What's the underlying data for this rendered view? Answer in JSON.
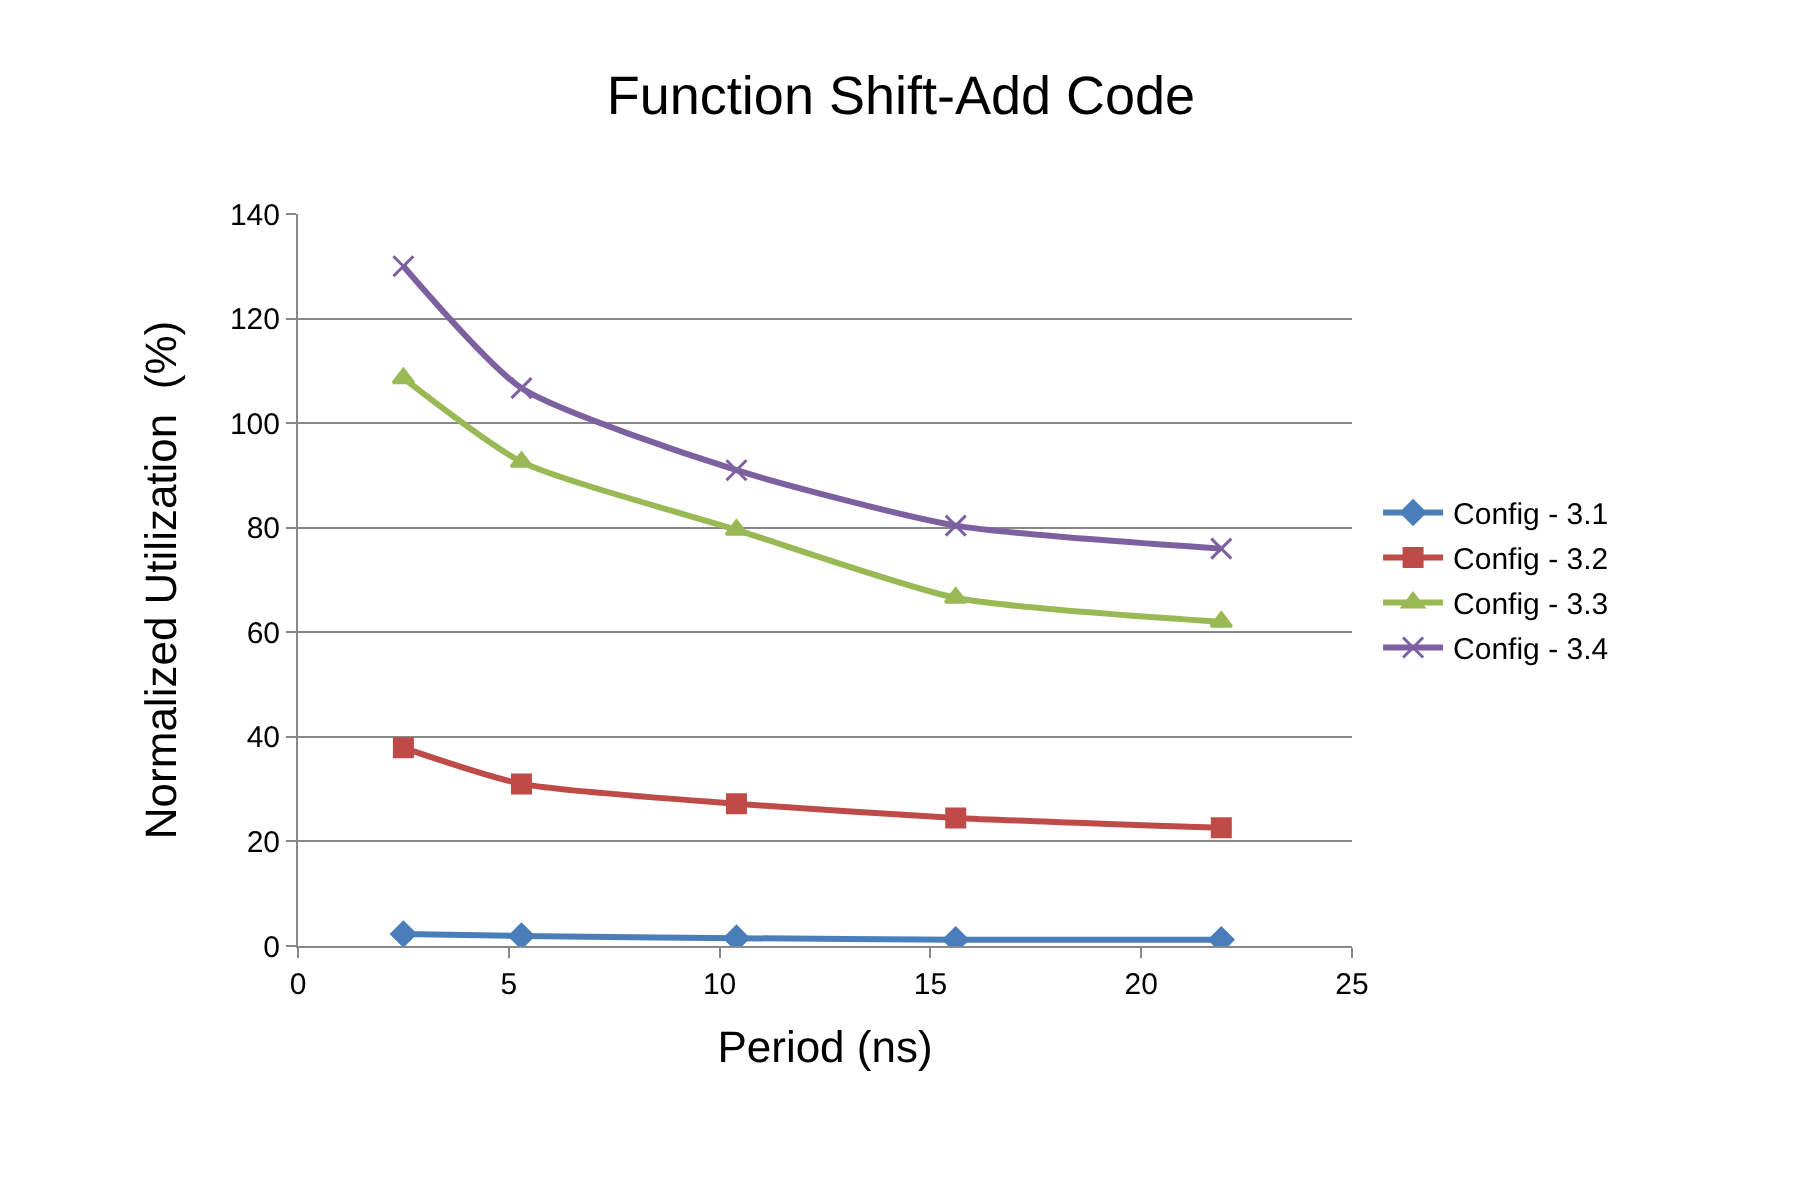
{
  "chart_data": {
    "type": "line",
    "title": "Function Shift-Add Code",
    "xlabel": "Period (ns)",
    "ylabel": "Normalized Utilization  (%)",
    "x": [
      2.5,
      5.3,
      10.4,
      15.6,
      21.9
    ],
    "series": [
      {
        "name": "Config - 3.1",
        "color": "#4a7ebb",
        "marker": "diamond",
        "values": [
          2.3,
          1.9,
          1.5,
          1.2,
          1.2
        ]
      },
      {
        "name": "Config - 3.2",
        "color": "#be4b48",
        "marker": "square",
        "values": [
          37.9,
          31,
          27.2,
          24.5,
          22.6
        ]
      },
      {
        "name": "Config - 3.3",
        "color": "#98b954",
        "marker": "triangle",
        "values": [
          108.6,
          92.6,
          79.6,
          66.6,
          62
        ]
      },
      {
        "name": "Config - 3.4",
        "color": "#7d60a0",
        "marker": "cross",
        "values": [
          130,
          106.7,
          91,
          80.4,
          76
        ]
      }
    ],
    "xlim": [
      0,
      25
    ],
    "xticks": [
      0,
      5,
      10,
      15,
      20,
      25
    ],
    "ylim": [
      0,
      140
    ],
    "yticks": [
      0,
      20,
      40,
      60,
      80,
      100,
      120,
      140
    ],
    "grid": "y",
    "legend": "right",
    "line_style": "solid"
  }
}
